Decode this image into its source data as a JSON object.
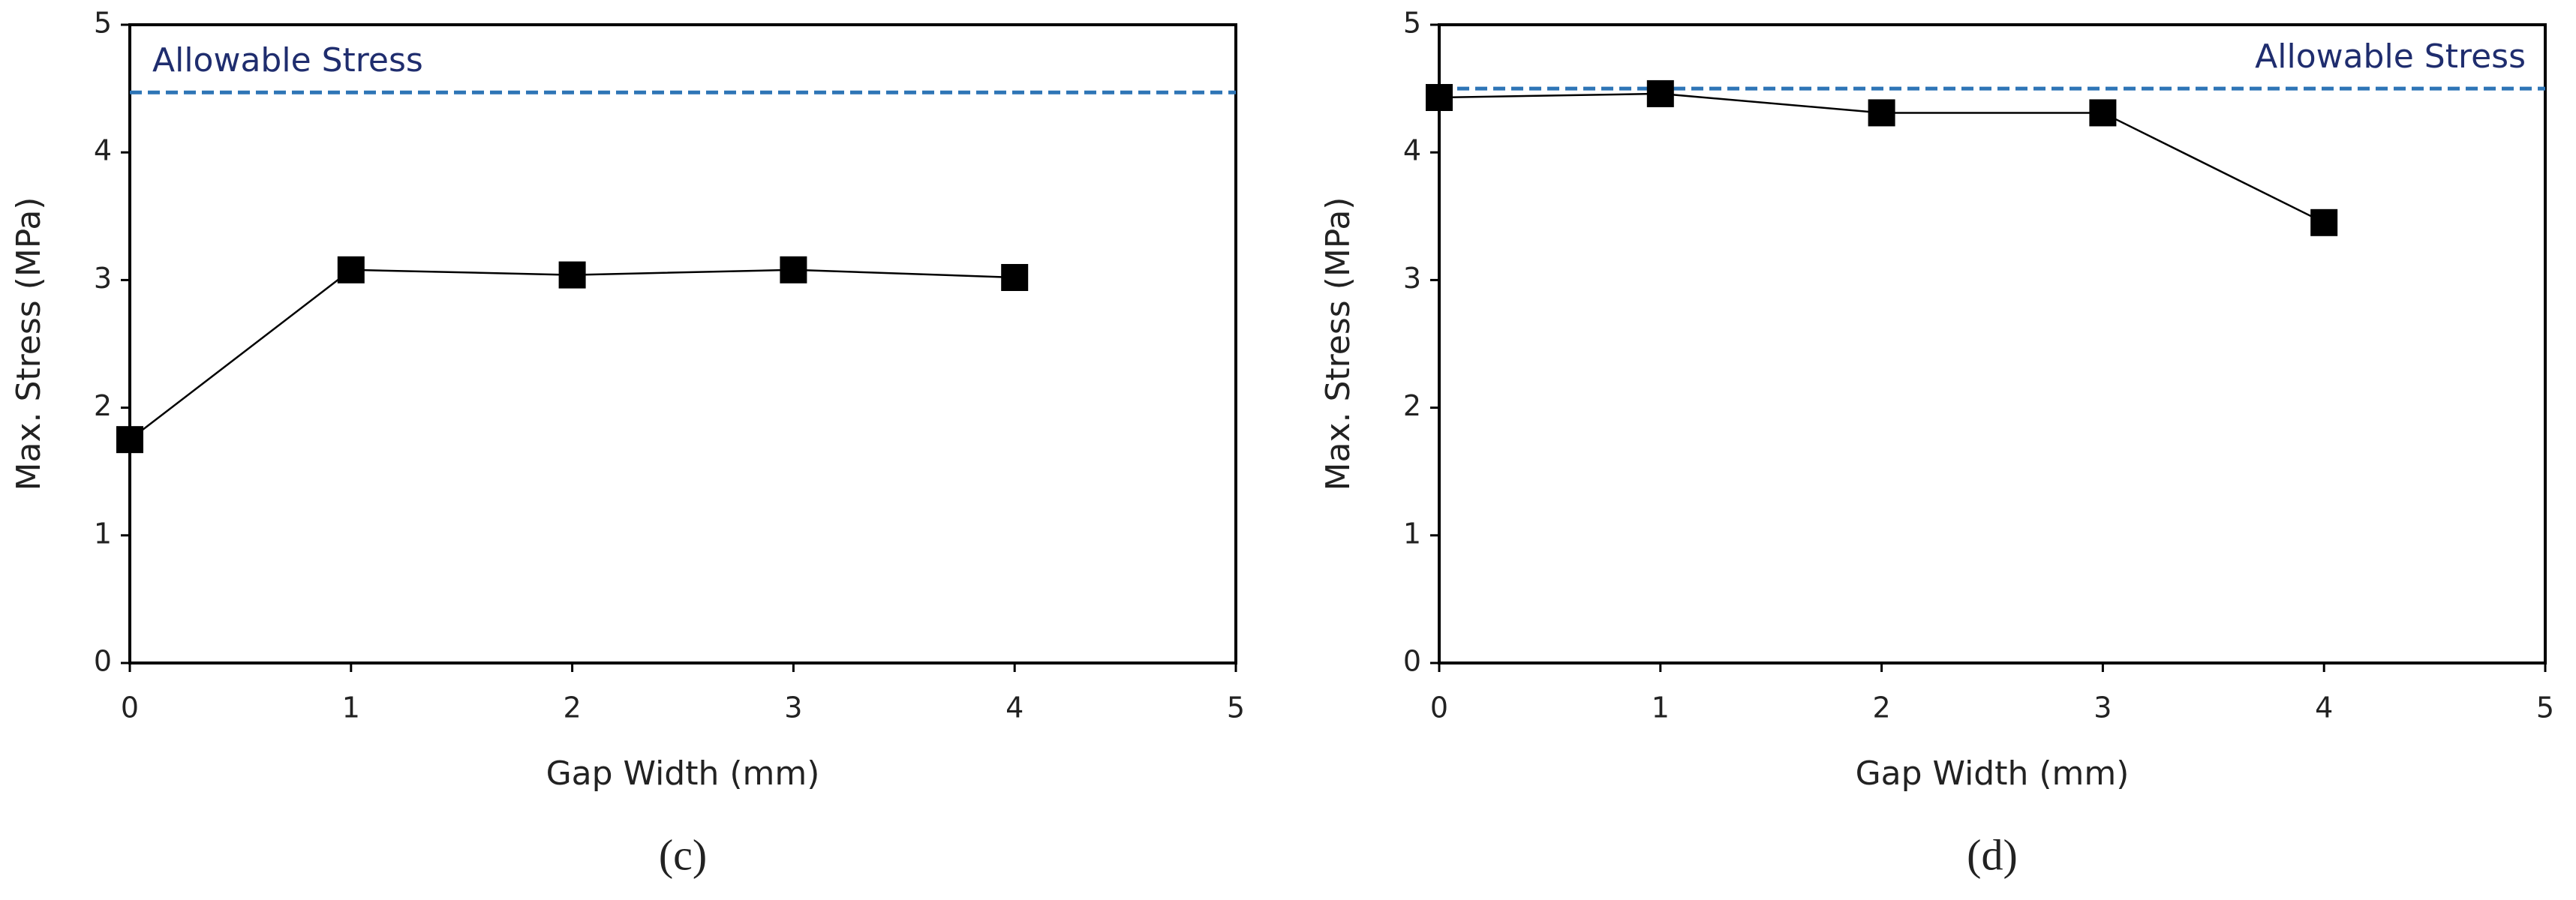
{
  "chart_data": [
    {
      "type": "line",
      "title": "(c)",
      "xlabel": "Gap Width (mm)",
      "ylabel": "Max. Stress (MPa)",
      "x": [
        0,
        1,
        2,
        3,
        4
      ],
      "values": [
        1.75,
        3.08,
        3.04,
        3.08,
        3.02
      ],
      "color": "#000000",
      "xlim": [
        0,
        5
      ],
      "xticks": [
        0,
        1,
        2,
        3,
        4,
        5
      ],
      "ylim": [
        0,
        5
      ],
      "yticks": [
        0,
        1,
        2,
        3,
        4,
        5
      ],
      "reference_line": {
        "value": 4.47,
        "label": "Allowable Stress",
        "color": "#2e75b6",
        "label_color": "#1f2d6e",
        "label_position": "left"
      }
    },
    {
      "type": "line",
      "title": "(d)",
      "xlabel": "Gap Width (mm)",
      "ylabel": "Max. Stress (MPa)",
      "x": [
        0,
        1,
        2,
        3,
        4
      ],
      "values": [
        4.43,
        4.46,
        4.31,
        4.31,
        3.45
      ],
      "color": "#000000",
      "xlim": [
        0,
        5
      ],
      "xticks": [
        0,
        1,
        2,
        3,
        4,
        5
      ],
      "ylim": [
        0,
        5
      ],
      "yticks": [
        0,
        1,
        2,
        3,
        4,
        5
      ],
      "reference_line": {
        "value": 4.5,
        "label": "Allowable Stress",
        "color": "#2e75b6",
        "label_color": "#1f2d6e",
        "label_position": "right"
      }
    }
  ]
}
